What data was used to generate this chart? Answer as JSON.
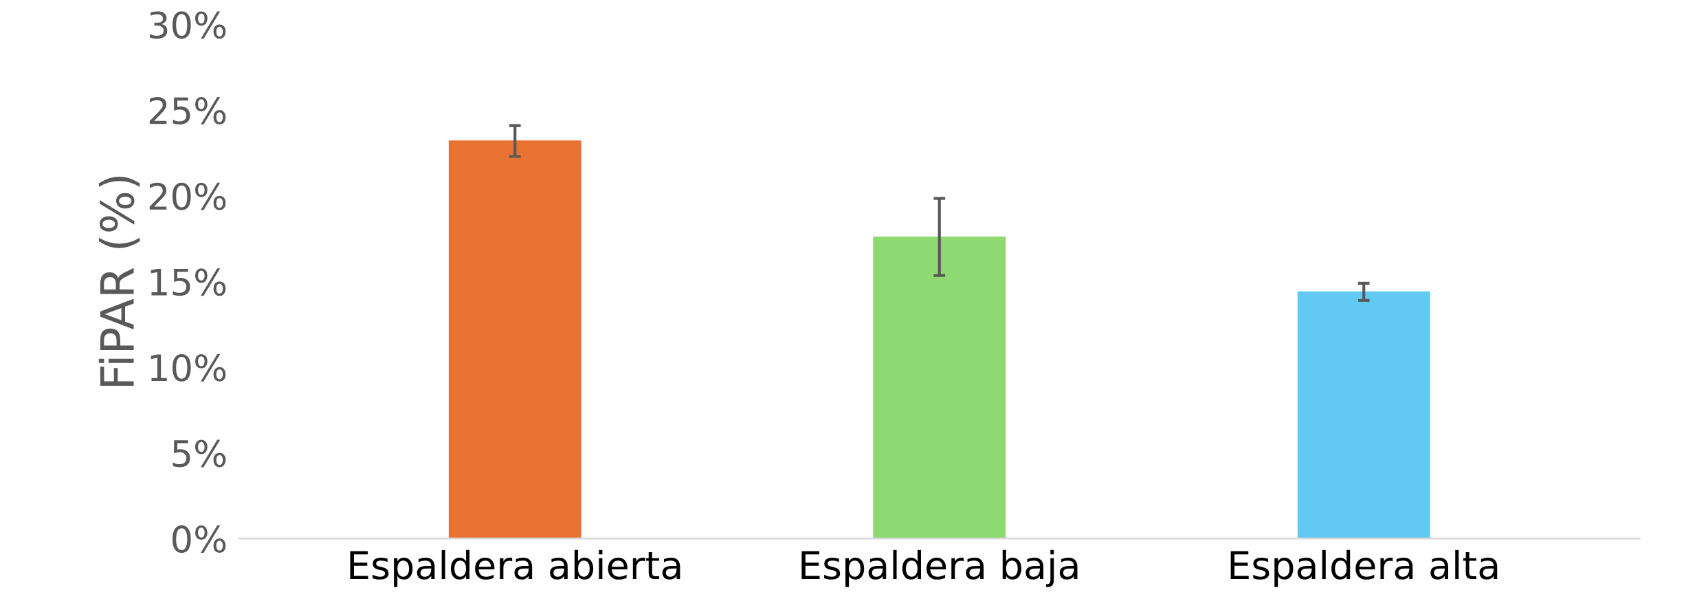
{
  "chart_data": {
    "type": "bar",
    "ylabel": "FiPAR (%)",
    "categories": [
      "Espaldera abierta",
      "Espaldera baja",
      "Espaldera alta"
    ],
    "values": [
      23.2,
      17.6,
      14.4
    ],
    "colors": [
      "#e87232",
      "#8fd973",
      "#61c9f2"
    ],
    "errors": [
      0.9,
      2.25,
      0.5
    ],
    "ylim": [
      0,
      30
    ],
    "yticks": [
      {
        "value": 0,
        "label": "0%"
      },
      {
        "value": 5,
        "label": "5%"
      },
      {
        "value": 10,
        "label": "10%"
      },
      {
        "value": 15,
        "label": "15%"
      },
      {
        "value": 20,
        "label": "20%"
      },
      {
        "value": 25,
        "label": "25%"
      },
      {
        "value": 30,
        "label": "30%"
      }
    ],
    "grid": false,
    "legend": false
  }
}
